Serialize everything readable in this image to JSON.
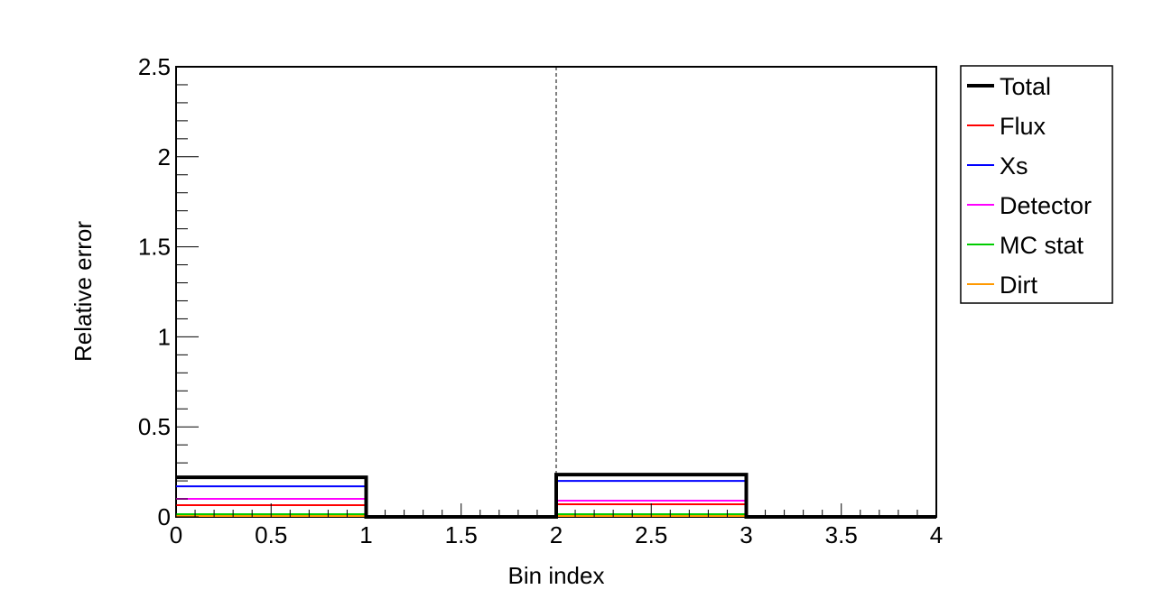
{
  "chart_data": {
    "type": "line",
    "title": "",
    "xlabel": "Bin index",
    "ylabel": "Relative error",
    "xlim": [
      0,
      4
    ],
    "ylim": [
      0,
      2.5
    ],
    "x_ticks": [
      0,
      0.5,
      1,
      1.5,
      2,
      2.5,
      3,
      3.5,
      4
    ],
    "x_tick_labels": [
      "0",
      "0.5",
      "1",
      "1.5",
      "2",
      "2.5",
      "3",
      "3.5",
      "4"
    ],
    "y_ticks": [
      0,
      0.5,
      1,
      1.5,
      2,
      2.5
    ],
    "y_tick_labels": [
      "0",
      "0.5",
      "1",
      "1.5",
      "2",
      "2.5"
    ],
    "bin_edges": [
      0,
      1,
      2,
      3,
      4
    ],
    "divider_x": 2,
    "grid": false,
    "legend_position": "right",
    "series": [
      {
        "name": "Total",
        "color": "#000000",
        "values": [
          0.22,
          0.0,
          0.235,
          0.0
        ]
      },
      {
        "name": "Flux",
        "color": "#ff0000",
        "values": [
          0.065,
          0.0,
          0.07,
          0.0
        ]
      },
      {
        "name": "Xs",
        "color": "#0000ff",
        "values": [
          0.17,
          0.0,
          0.2,
          0.0
        ]
      },
      {
        "name": "Detector",
        "color": "#ff00ff",
        "values": [
          0.1,
          0.0,
          0.09,
          0.0
        ]
      },
      {
        "name": "MC stat",
        "color": "#00cc00",
        "values": [
          0.015,
          0.0,
          0.015,
          0.0
        ]
      },
      {
        "name": "Dirt",
        "color": "#ff9900",
        "values": [
          0.005,
          0.0,
          0.005,
          0.0
        ]
      }
    ]
  }
}
